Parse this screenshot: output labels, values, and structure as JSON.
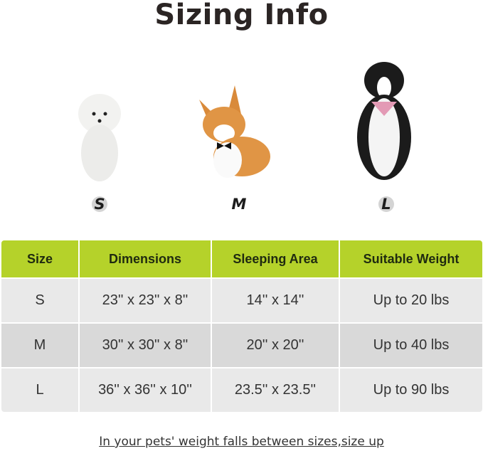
{
  "title": "Sizing Info",
  "sizes": [
    {
      "label": "S",
      "dog": "poodle"
    },
    {
      "label": "M",
      "dog": "corgi"
    },
    {
      "label": "L",
      "dog": "border-collie"
    }
  ],
  "table": {
    "headers": [
      "Size",
      "Dimensions",
      "Sleeping Area",
      "Suitable Weight"
    ],
    "rows": [
      [
        "S",
        "23'' x 23'' x 8''",
        "14'' x 14''",
        "Up to 20 lbs"
      ],
      [
        "M",
        "30'' x 30'' x 8''",
        "20'' x 20''",
        "Up to 40 lbs"
      ],
      [
        "L",
        "36'' x 36'' x 10''",
        "23.5'' x 23.5''",
        "Up to 90 lbs"
      ]
    ]
  },
  "colors": {
    "header": "#b5d22a",
    "row_light": "#e9e9e9",
    "row_dark": "#d9d9d9"
  },
  "note": "In your pets' weight falls between sizes,size up"
}
